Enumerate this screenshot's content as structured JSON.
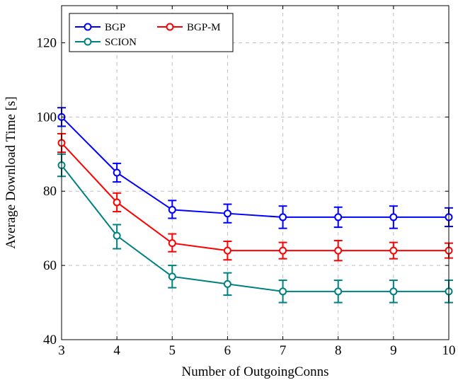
{
  "chart_data": {
    "type": "line",
    "xlabel": "Number of OutgoingConns",
    "ylabel": "Average Download Time [s]",
    "x": [
      3,
      4,
      5,
      6,
      7,
      8,
      9,
      10
    ],
    "xlim": [
      3,
      10
    ],
    "ylim": [
      40,
      130
    ],
    "xticks": [
      "3",
      "4",
      "5",
      "6",
      "7",
      "8",
      "9",
      "10"
    ],
    "yticks": [
      40,
      60,
      80,
      100,
      120
    ],
    "ytick_labels": [
      "40",
      "60",
      "80",
      "100",
      "120"
    ],
    "grid": true,
    "legend_position": "top-left",
    "series": [
      {
        "name": "BGP",
        "color": "#0000ff",
        "values": [
          100,
          85,
          75,
          74,
          73,
          73,
          73,
          73
        ],
        "err_low": [
          2.5,
          2.5,
          2.3,
          2.5,
          3.0,
          2.7,
          3.0,
          2.5
        ],
        "err_high": [
          2.5,
          2.5,
          2.5,
          2.5,
          3.0,
          2.7,
          3.0,
          2.5
        ]
      },
      {
        "name": "BGP-M",
        "color": "#ff0000",
        "values": [
          93,
          77,
          66,
          64,
          64,
          64,
          64,
          64
        ],
        "err_low": [
          2.5,
          2.5,
          2.3,
          2.5,
          2.2,
          2.7,
          2.2,
          2.0
        ],
        "err_high": [
          2.5,
          2.5,
          2.5,
          2.5,
          2.2,
          2.7,
          2.2,
          2.0
        ]
      },
      {
        "name": "SCION",
        "color": "#008080",
        "values": [
          87,
          68,
          57,
          55,
          53,
          53,
          53,
          53
        ],
        "err_low": [
          3.0,
          3.5,
          3.0,
          3.0,
          3.0,
          3.0,
          3.0,
          3.0
        ],
        "err_high": [
          3.0,
          3.0,
          3.0,
          3.0,
          3.0,
          3.0,
          3.0,
          3.0
        ]
      }
    ]
  }
}
